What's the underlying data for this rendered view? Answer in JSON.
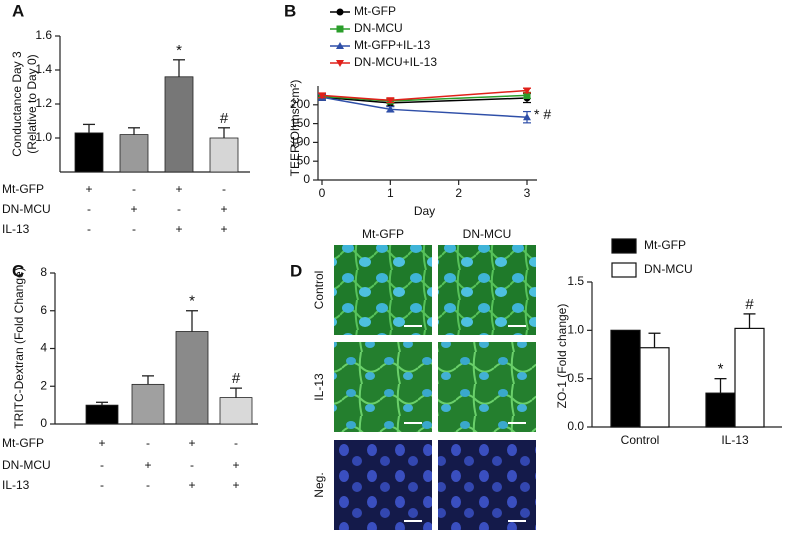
{
  "chart_data": [
    {
      "type": "bar",
      "panel": "A",
      "y_label": [
        "Conductance Day 3",
        "(Relative to Day 0)"
      ],
      "values": [
        1.03,
        1.02,
        1.36,
        1.0
      ],
      "errors": [
        0.05,
        0.04,
        0.1,
        0.06
      ],
      "colors": [
        "#000000",
        "#9a9a9a",
        "#777777",
        "#d6d6d6"
      ],
      "ylim": [
        0.8,
        1.6
      ],
      "yticks": [
        {
          "value": 1,
          "label": "1.0"
        },
        1.2,
        1.4,
        1.6
      ],
      "annotations": [
        {
          "index": 2,
          "text": "*"
        },
        {
          "index": 3,
          "text": "#"
        }
      ],
      "conditions": [
        {
          "label": "Mt-GFP",
          "signs": [
            "+",
            "-",
            "+",
            "-"
          ]
        },
        {
          "label": "DN-MCU",
          "signs": [
            "-",
            "+",
            "-",
            "+"
          ]
        },
        {
          "label": "IL-13",
          "signs": [
            "-",
            "-",
            "+",
            "+"
          ]
        }
      ]
    },
    {
      "type": "line",
      "panel": "B",
      "y_label": "TEER(Ohms*cm²)",
      "x_label": "Day",
      "x": [
        0,
        1,
        3
      ],
      "xlim": [
        0,
        3
      ],
      "xticks": [
        0,
        1,
        2,
        3
      ],
      "ylim": [
        0,
        250
      ],
      "yticks": [
        0,
        50,
        100,
        150,
        200
      ],
      "series": [
        {
          "name": "Mt-GFP",
          "color": "#000000",
          "marker": "circle",
          "values": [
            220,
            205,
            218
          ],
          "errors": [
            8,
            8,
            12
          ]
        },
        {
          "name": "DN-MCU",
          "color": "#2a9d2a",
          "marker": "square",
          "values": [
            222,
            210,
            225
          ],
          "errors": [
            6,
            6,
            8
          ]
        },
        {
          "name": "Mt-GFP+IL-13",
          "color": "#2f4fa8",
          "marker": "triangle-up",
          "values": [
            220,
            188,
            167
          ],
          "errors": [
            8,
            7,
            15
          ]
        },
        {
          "name": "DN-MCU+IL-13",
          "color": "#e0201a",
          "marker": "triangle-down",
          "values": [
            225,
            212,
            238
          ],
          "errors": [
            6,
            6,
            6
          ]
        }
      ],
      "annotations": [
        {
          "series": 2,
          "index": 2,
          "text": "* #"
        }
      ]
    },
    {
      "type": "bar",
      "panel": "C",
      "y_label": [
        "TRITC-Dextran (Fold Change)"
      ],
      "values": [
        1.0,
        2.1,
        4.9,
        1.4
      ],
      "errors": [
        0.15,
        0.45,
        1.1,
        0.5
      ],
      "colors": [
        "#000000",
        "#a0a0a0",
        "#8a8a8a",
        "#d9d9d9"
      ],
      "ylim": [
        0,
        8
      ],
      "yticks": [
        0,
        2,
        4,
        6,
        8
      ],
      "annotations": [
        {
          "index": 2,
          "text": "*"
        },
        {
          "index": 3,
          "text": "#"
        }
      ],
      "conditions": [
        {
          "label": "Mt-GFP",
          "signs": [
            "+",
            "-",
            "+",
            "-"
          ]
        },
        {
          "label": "DN-MCU",
          "signs": [
            "-",
            "+",
            "-",
            "+"
          ]
        },
        {
          "label": "IL-13",
          "signs": [
            "-",
            "-",
            "+",
            "+"
          ]
        }
      ]
    },
    {
      "type": "grouped-bar",
      "panel": "D",
      "y_label": "ZO-1 (Fold change)",
      "categories": [
        "Control",
        "IL-13"
      ],
      "series": [
        {
          "name": "Mt-GFP",
          "color": "#000000",
          "values": [
            1.0,
            0.35
          ],
          "errors": [
            0,
            0.15
          ]
        },
        {
          "name": "DN-MCU",
          "color": "#ffffff",
          "values": [
            0.82,
            1.02
          ],
          "errors": [
            0.15,
            0.15
          ]
        }
      ],
      "ylim": [
        0,
        1.5
      ],
      "yticks": [
        {
          "value": 0,
          "label": "0.0"
        },
        0.5,
        {
          "value": 1,
          "label": "1.0"
        },
        1.5
      ],
      "annotations": [
        {
          "series": 0,
          "index": 1,
          "text": "*"
        },
        {
          "series": 1,
          "index": 1,
          "text": "#"
        }
      ],
      "legend": "top-left"
    }
  ],
  "micrographs": {
    "columns": [
      "Mt-GFP",
      "DN-MCU"
    ],
    "rows": [
      "Control",
      "IL-13",
      "Neg."
    ]
  }
}
